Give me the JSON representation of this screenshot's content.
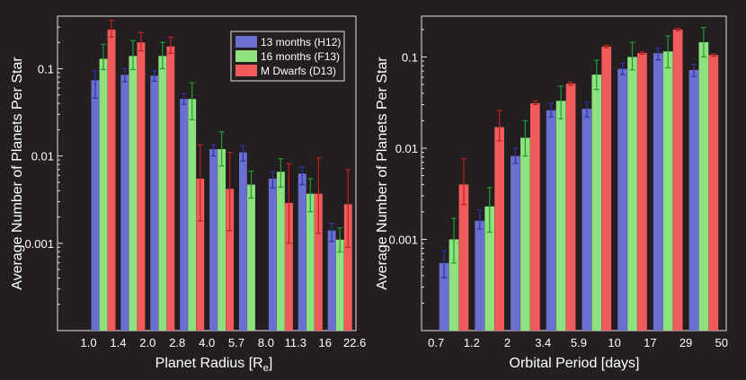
{
  "colors": {
    "background": "#231f20",
    "axis": "#e0e0e0",
    "text": "#ffffff",
    "h12": "#6a6fd0",
    "f13": "#8fe07e",
    "d13": "#f25b5b",
    "err_h12": "#2c33a8",
    "err_f13": "#1f9b31",
    "err_d13": "#c11d1d"
  },
  "legend": {
    "h12": "13 months (H12)",
    "f13": "16 months (F13)",
    "d13": "M Dwarfs (D13)"
  },
  "chart_data": [
    {
      "type": "bar",
      "scale": "log",
      "ylabel": "Average Number of Planets Per Star",
      "xlabel_main": "Planet Radius [R",
      "xlabel_sub": "e",
      "xlabel_end": "]",
      "ylim": [
        0.0001,
        0.4
      ],
      "yticks": [
        0.001,
        0.01,
        0.1
      ],
      "ytick_labels": [
        "0.001",
        "0.01",
        "0.1"
      ],
      "bin_edges": [
        "1.0",
        "1.4",
        "2.0",
        "2.8",
        "4.0",
        "5.7",
        "8.0",
        "11.3",
        "16",
        "22.6"
      ],
      "legend_location": "top-right",
      "series": [
        {
          "key": "h12",
          "name": "13 months (H12)",
          "values": [
            0.074,
            0.085,
            0.083,
            0.045,
            0.012,
            0.011,
            0.0055,
            0.0063,
            0.0014
          ],
          "err_lo": [
            0.046,
            0.071,
            0.072,
            0.039,
            0.01,
            0.0088,
            0.0043,
            0.0047,
            0.00105
          ],
          "err_hi": [
            0.095,
            0.1,
            0.094,
            0.052,
            0.0135,
            0.013,
            0.0066,
            0.0075,
            0.0017
          ]
        },
        {
          "key": "f13",
          "name": "16 months (F13)",
          "values": [
            0.13,
            0.14,
            0.14,
            0.045,
            0.012,
            0.0047,
            0.0066,
            0.0037,
            0.0011
          ],
          "err_lo": [
            0.098,
            0.098,
            0.1,
            0.026,
            0.0077,
            0.0033,
            0.0044,
            0.0023,
            0.0008
          ],
          "err_hi": [
            0.19,
            0.21,
            0.2,
            0.069,
            0.019,
            0.0067,
            0.0093,
            0.0055,
            0.0015
          ]
        },
        {
          "key": "d13",
          "name": "M Dwarfs (D13)",
          "values": [
            0.28,
            0.2,
            0.18,
            0.0055,
            0.0042,
            null,
            0.0029,
            0.0037,
            0.0028
          ],
          "err_lo": [
            0.23,
            0.16,
            0.15,
            0.0018,
            0.0014,
            null,
            0.001,
            0.0013,
            0.0009
          ],
          "err_hi": [
            0.36,
            0.26,
            0.23,
            0.0135,
            0.011,
            null,
            0.0082,
            0.0095,
            0.007
          ]
        }
      ]
    },
    {
      "type": "bar",
      "scale": "log",
      "ylabel": "Average Number of Planets Per Star",
      "xlabel_main": "Orbital Period [days]",
      "xlabel_sub": "",
      "xlabel_end": "",
      "ylim": [
        0.0001,
        0.28
      ],
      "yticks": [
        0.001,
        0.01,
        0.1
      ],
      "ytick_labels": [
        "0.001",
        "0.01",
        "0.1"
      ],
      "bin_edges": [
        "0.7",
        "1.2",
        "2",
        "3.4",
        "5.9",
        "10",
        "17",
        "29",
        "50"
      ],
      "legend_location": "none",
      "series": [
        {
          "key": "h12",
          "name": "13 months (H12)",
          "values": [
            0.00055,
            0.0016,
            0.0082,
            0.026,
            0.027,
            0.074,
            0.11,
            0.072
          ],
          "err_lo": [
            0.00038,
            0.0013,
            0.0068,
            0.022,
            0.022,
            0.064,
            0.093,
            0.061
          ],
          "err_hi": [
            0.00075,
            0.0021,
            0.01,
            0.031,
            0.032,
            0.085,
            0.125,
            0.083
          ]
        },
        {
          "key": "f13",
          "name": "16 months (F13)",
          "values": [
            0.001,
            0.0023,
            0.013,
            0.033,
            0.064,
            0.1,
            0.115,
            0.145
          ],
          "err_lo": [
            0.00055,
            0.0012,
            0.0082,
            0.021,
            0.044,
            0.072,
            0.076,
            0.1
          ],
          "err_hi": [
            0.0017,
            0.0037,
            0.02,
            0.048,
            0.092,
            0.145,
            0.17,
            0.21
          ]
        },
        {
          "key": "d13",
          "name": "M Dwarfs (D13)",
          "values": [
            0.004,
            0.017,
            0.031,
            0.051,
            0.13,
            0.11,
            0.2,
            0.105
          ],
          "err_lo": [
            0.0024,
            0.012,
            0.03,
            0.049,
            0.126,
            0.107,
            0.194,
            0.102
          ],
          "err_hi": [
            0.0077,
            0.026,
            0.033,
            0.053,
            0.134,
            0.113,
            0.206,
            0.108
          ]
        }
      ]
    }
  ]
}
